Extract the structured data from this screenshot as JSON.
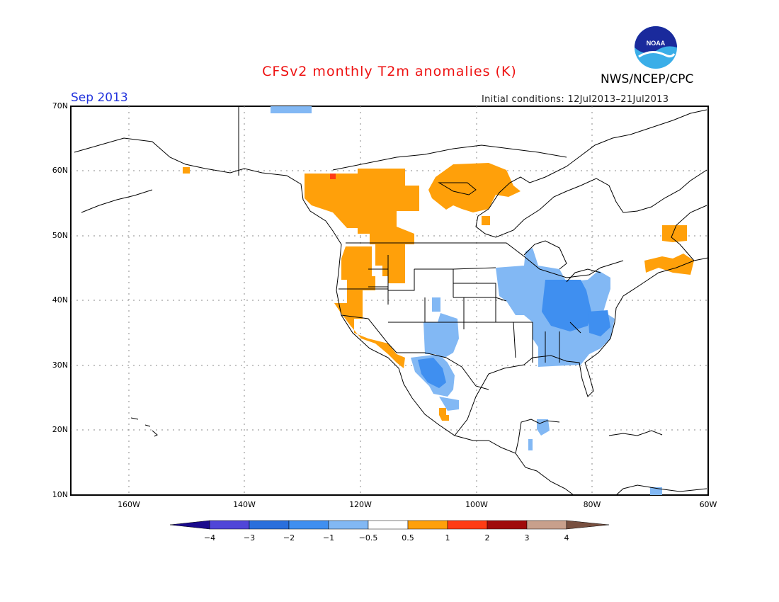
{
  "title": "CFSv2 monthly T2m anomalies (K)",
  "agency": "NWS/NCEP/CPC",
  "logo_text": "NOAA",
  "month": "Sep 2013",
  "initial_conditions": "Initial conditions: 12Jul2013–21Jul2013",
  "map": {
    "lat_labels": [
      "70N",
      "60N",
      "50N",
      "40N",
      "30N",
      "20N",
      "10N"
    ],
    "lon_labels": [
      "160W",
      "140W",
      "120W",
      "100W",
      "80W",
      "60W"
    ]
  },
  "colorbar": {
    "labels": [
      "−4",
      "−3",
      "−2",
      "−1",
      "−0.5",
      "0.5",
      "1",
      "2",
      "3",
      "4"
    ],
    "colors": [
      "#1a0a8c",
      "#5046d8",
      "#2a6fdc",
      "#3f8ff0",
      "#82b8f4",
      "#ffffff",
      "#ffa00a",
      "#ff3c14",
      "#a00a0a",
      "#c8a08c",
      "#785040"
    ]
  },
  "colors": {
    "warm_1": "#ffa00a",
    "warm_2": "#ff3c14",
    "cool_1": "#82b8f4",
    "cool_2": "#3f8ff0"
  }
}
